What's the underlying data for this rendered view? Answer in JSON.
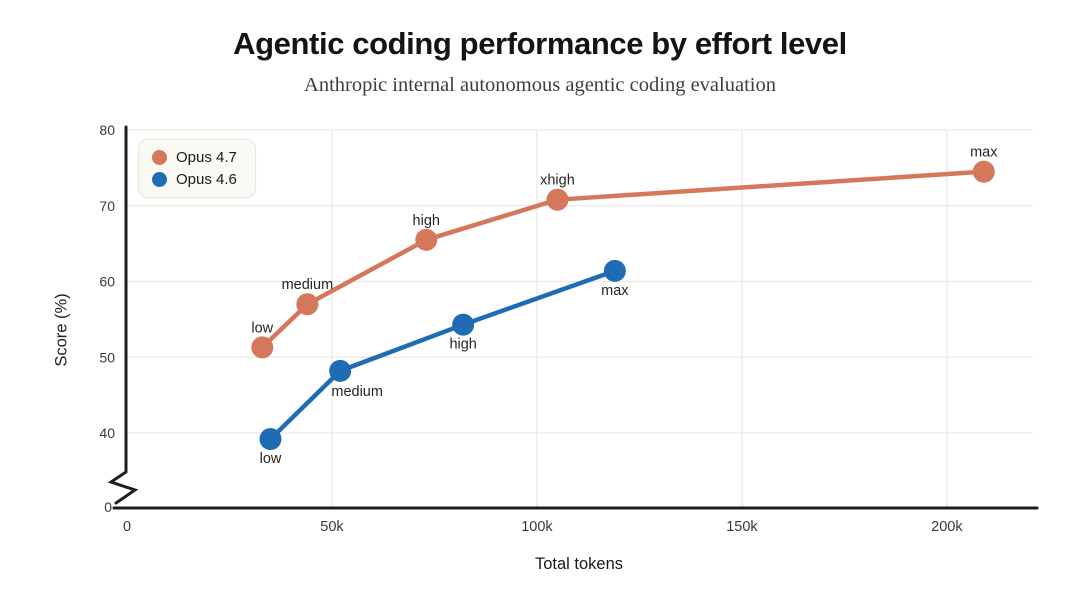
{
  "chart_data": {
    "type": "line",
    "title": "Agentic coding performance by effort level",
    "subtitle": "Anthropic internal autonomous agentic coding evaluation",
    "xlabel": "Total tokens",
    "ylabel": "Score (%)",
    "grid": true,
    "legend_position": "top-left",
    "axis_break": "y-axis broken between 0 and 40",
    "xlim": [
      0,
      221000
    ],
    "ylim": [
      40,
      80
    ],
    "x_ticks": [
      {
        "value": 0,
        "label": "0"
      },
      {
        "value": 50000,
        "label": "50k"
      },
      {
        "value": 100000,
        "label": "100k"
      },
      {
        "value": 150000,
        "label": "150k"
      },
      {
        "value": 200000,
        "label": "200k"
      }
    ],
    "y_ticks": [
      {
        "value": 40,
        "label": "40"
      },
      {
        "value": 50,
        "label": "50"
      },
      {
        "value": 60,
        "label": "60"
      },
      {
        "value": 70,
        "label": "70"
      },
      {
        "value": 80,
        "label": "80"
      }
    ],
    "y_zero_tick_label": "0",
    "series": [
      {
        "name": "Opus 4.7",
        "color": "#d4775a",
        "points": [
          {
            "effort": "low",
            "x": 33000,
            "y": 51.3,
            "label_pos": "above"
          },
          {
            "effort": "medium",
            "x": 44000,
            "y": 57.0,
            "label_pos": "above"
          },
          {
            "effort": "high",
            "x": 73000,
            "y": 65.5,
            "label_pos": "above"
          },
          {
            "effort": "xhigh",
            "x": 105000,
            "y": 70.8,
            "label_pos": "above"
          },
          {
            "effort": "max",
            "x": 209000,
            "y": 74.5,
            "label_pos": "above"
          }
        ]
      },
      {
        "name": "Opus 4.6",
        "color": "#1f6cb4",
        "points": [
          {
            "effort": "low",
            "x": 35000,
            "y": 39.2,
            "label_pos": "below"
          },
          {
            "effort": "medium",
            "x": 52000,
            "y": 48.2,
            "label_pos": "below-right"
          },
          {
            "effort": "high",
            "x": 82000,
            "y": 54.3,
            "label_pos": "below"
          },
          {
            "effort": "max",
            "x": 119000,
            "y": 61.4,
            "label_pos": "below"
          }
        ]
      }
    ],
    "colors": {
      "grid": "#ebe9e5",
      "axis": "#1f1e1c",
      "tick_text": "#3a3936",
      "point_label_text": "#262523"
    }
  }
}
